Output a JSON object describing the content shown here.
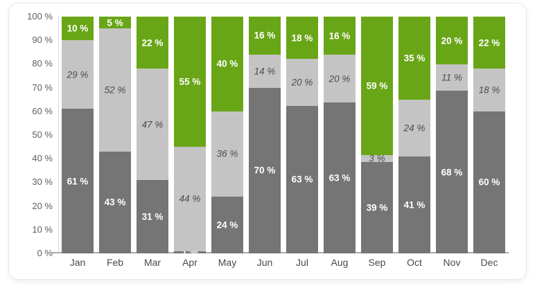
{
  "chart_data": {
    "type": "bar",
    "subtype": "stacked-100-percent",
    "title": "",
    "xlabel": "",
    "ylabel": "",
    "categories": [
      "Jan",
      "Feb",
      "Mar",
      "Apr",
      "May",
      "Jun",
      "Jul",
      "Aug",
      "Sep",
      "Oct",
      "Nov",
      "Dec"
    ],
    "series": [
      {
        "name": "dark-gray-bottom",
        "color": "#757575",
        "label_style": "bold-white",
        "values": [
          61,
          43,
          31,
          1,
          24,
          70,
          63,
          63,
          39,
          41,
          68,
          60
        ]
      },
      {
        "name": "light-gray-middle",
        "color": "#c4c4c4",
        "label_style": "italic-dark",
        "values": [
          29,
          52,
          47,
          44,
          36,
          14,
          20,
          20,
          3,
          24,
          11,
          18
        ]
      },
      {
        "name": "green-top",
        "color": "#69a617",
        "label_style": "bold-white",
        "values": [
          10,
          5,
          22,
          55,
          40,
          16,
          18,
          16,
          59,
          35,
          20,
          22
        ]
      }
    ],
    "label_suffix": " %",
    "y_ticks": [
      0,
      10,
      20,
      30,
      40,
      50,
      60,
      70,
      80,
      90,
      100
    ],
    "y_tick_suffix": " %",
    "ylim": [
      0,
      100
    ],
    "grid": false,
    "legend_position": "none"
  },
  "card": {
    "background": "#ffffff",
    "border_color": "#e9e9ee"
  },
  "axes": {
    "y_axis_line_color": "#d9d9d9",
    "x_axis_line_color": "#a8a8a8",
    "tick_label_color": "#5d5d5d",
    "month_label_color": "#484848"
  }
}
